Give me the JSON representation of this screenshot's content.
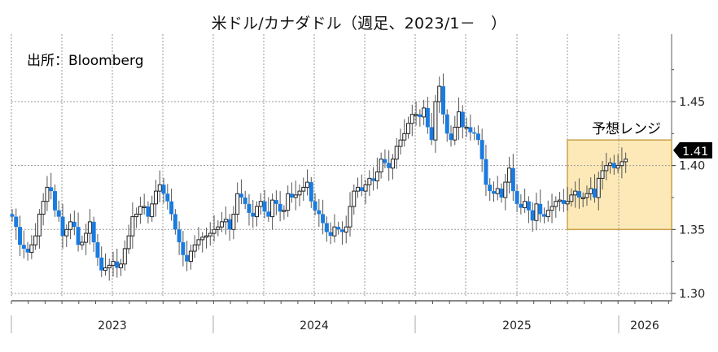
{
  "title": "米ドル/カナダドル（週足、2023/1－　）",
  "source_label": "出所：Bloomberg",
  "forecast_label": "予想レンジ",
  "last_price_badge": "1.41",
  "colors": {
    "down_candle": "#1a7be0",
    "up_candle_fill": "#ffffff",
    "up_candle_border": "#222222",
    "wick": "#555555",
    "grid": "#9a9a9a",
    "forecast_fill": "#fde9b8",
    "forecast_border": "#c8a24a",
    "badge_bg": "#000000",
    "badge_text": "#ffffff"
  },
  "chart_data": {
    "type": "candlestick",
    "title": "米ドル/カナダドル（週足、2023/1－　）",
    "xlabel": "",
    "ylabel": "",
    "ylim": [
      1.295,
      1.49
    ],
    "yticks": [
      "1.30",
      "1.35",
      "1.40",
      "1.45"
    ],
    "x_categories": [
      "2023",
      "2024",
      "2025",
      "2026"
    ],
    "grid": true,
    "forecast_range": {
      "label": "予想レンジ",
      "low": 1.35,
      "high": 1.42,
      "start": "2025-10",
      "end": "2026-12"
    },
    "last_value": 1.41,
    "weekly_close": [
      1.36,
      1.352,
      1.338,
      1.335,
      1.332,
      1.338,
      1.345,
      1.362,
      1.372,
      1.383,
      1.38,
      1.365,
      1.36,
      1.345,
      1.35,
      1.356,
      1.352,
      1.338,
      1.34,
      1.347,
      1.356,
      1.34,
      1.328,
      1.318,
      1.32,
      1.322,
      1.325,
      1.32,
      1.323,
      1.335,
      1.345,
      1.36,
      1.362,
      1.368,
      1.368,
      1.36,
      1.37,
      1.38,
      1.385,
      1.378,
      1.372,
      1.362,
      1.35,
      1.34,
      1.33,
      1.325,
      1.333,
      1.338,
      1.342,
      1.344,
      1.345,
      1.347,
      1.35,
      1.352,
      1.356,
      1.358,
      1.35,
      1.362,
      1.378,
      1.375,
      1.37,
      1.363,
      1.36,
      1.368,
      1.372,
      1.364,
      1.36,
      1.373,
      1.37,
      1.364,
      1.365,
      1.378,
      1.375,
      1.377,
      1.38,
      1.383,
      1.387,
      1.372,
      1.365,
      1.362,
      1.355,
      1.348,
      1.345,
      1.352,
      1.35,
      1.348,
      1.352,
      1.368,
      1.38,
      1.383,
      1.38,
      1.385,
      1.39,
      1.388,
      1.395,
      1.405,
      1.402,
      1.398,
      1.405,
      1.415,
      1.42,
      1.425,
      1.433,
      1.44,
      1.44,
      1.438,
      1.445,
      1.43,
      1.42,
      1.45,
      1.462,
      1.44,
      1.425,
      1.42,
      1.43,
      1.442,
      1.43,
      1.43,
      1.426,
      1.425,
      1.42,
      1.405,
      1.385,
      1.38,
      1.378,
      1.382,
      1.375,
      1.387,
      1.398,
      1.38,
      1.37,
      1.367,
      1.372,
      1.365,
      1.357,
      1.37,
      1.362,
      1.36,
      1.365,
      1.368,
      1.372,
      1.373,
      1.37,
      1.372,
      1.377,
      1.38,
      1.375,
      1.375,
      1.378,
      1.382,
      1.375,
      1.39,
      1.396,
      1.4,
      1.402,
      1.398,
      1.4,
      1.403,
      1.405
    ]
  },
  "axis": {
    "y_ticks": [
      "1.45",
      "1.40",
      "1.35",
      "1.30"
    ],
    "x_years": [
      "2023",
      "2024",
      "2025",
      "2026"
    ]
  }
}
